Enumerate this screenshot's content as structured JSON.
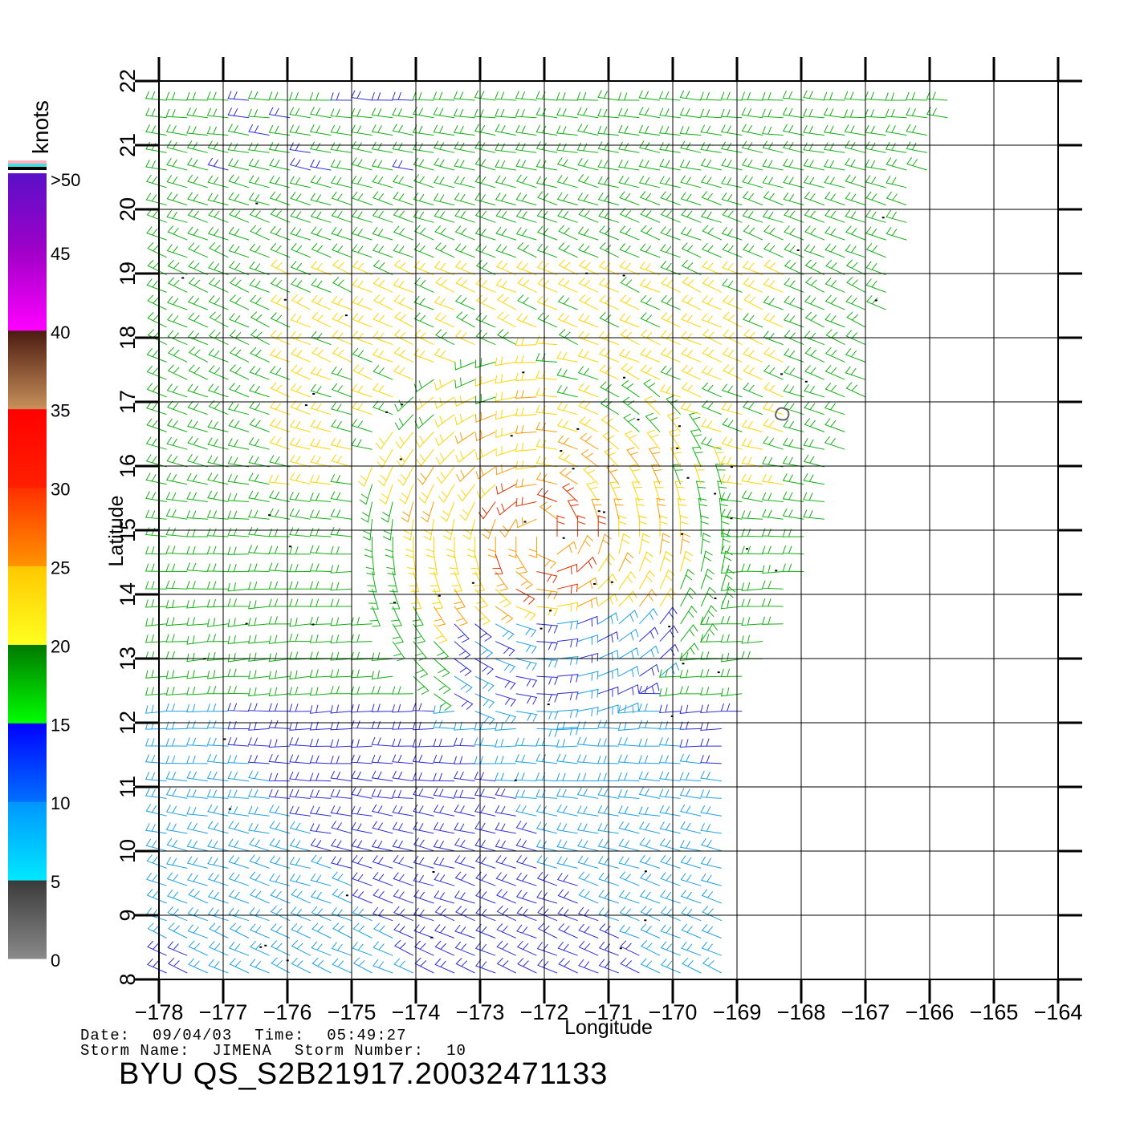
{
  "chart_data": {
    "type": "scatter",
    "subtype": "wind-barb-map",
    "xlabel": "Longitude",
    "ylabel": "Latitude",
    "xlim": [
      -178,
      -164
    ],
    "ylim": [
      8,
      22
    ],
    "x_ticks": [
      -178,
      -177,
      -176,
      -175,
      -174,
      -173,
      -172,
      -171,
      -170,
      -169,
      -168,
      -167,
      -166,
      -165,
      -164
    ],
    "y_ticks": [
      8,
      9,
      10,
      11,
      12,
      13,
      14,
      15,
      16,
      17,
      18,
      19,
      20,
      21,
      22
    ],
    "grid": true,
    "colorbar": {
      "title": "knots",
      "placement": "left",
      "tick_labels": [
        "0",
        "5",
        "10",
        "15",
        "20",
        "25",
        "30",
        "35",
        "40",
        "45",
        ">50"
      ],
      "bands": [
        {
          "from": 0,
          "to": 5,
          "top": "#3a3a3a",
          "bottom": "#8a8a8a"
        },
        {
          "from": 5,
          "to": 10,
          "top": "#0096ff",
          "bottom": "#00e8ff"
        },
        {
          "from": 10,
          "to": 15,
          "top": "#0000ff",
          "bottom": "#0070ff"
        },
        {
          "from": 15,
          "to": 20,
          "top": "#007800",
          "bottom": "#00ff00"
        },
        {
          "from": 20,
          "to": 25,
          "top": "#ffc800",
          "bottom": "#ffff20"
        },
        {
          "from": 25,
          "to": 30,
          "top": "#ff3000",
          "bottom": "#ff9400"
        },
        {
          "from": 30,
          "to": 35,
          "top": "#ff0000",
          "bottom": "#ff2000"
        },
        {
          "from": 35,
          "to": 40,
          "top": "#4a1a10",
          "bottom": "#c8905a"
        },
        {
          "from": 40,
          "to": 45,
          "top": "#a000c8",
          "bottom": "#ff00ff"
        },
        {
          "from": 45,
          "to": 50,
          "top": "#5a10c8",
          "bottom": "#a000c8"
        }
      ],
      "top_stripes": [
        "#ffb0c0",
        "#40e0e0",
        "#000000"
      ]
    },
    "speed_colors": [
      "#2d2dd8",
      "#1ea0e6",
      "#12b012",
      "#ffd400",
      "#ff9a00",
      "#e03000",
      "#d000d0"
    ],
    "swath": {
      "polygon": [
        [
          -178,
          8
        ],
        [
          -169,
          8
        ],
        [
          -169,
          12
        ],
        [
          -168,
          14
        ],
        [
          -167,
          17
        ],
        [
          -166.5,
          19
        ],
        [
          -165.5,
          22
        ],
        [
          -178,
          22
        ]
      ],
      "rain_flag_color": "#000000"
    },
    "storm_center": {
      "lon": -172,
      "lat": 14.9
    }
  },
  "footer": {
    "date_label": "Date:",
    "date_value": "09/04/03",
    "time_label": "Time:",
    "time_value": "05:49:27",
    "storm_name_label": "Storm  Name:",
    "storm_name_value": "JIMENA",
    "storm_number_label": "Storm  Number:",
    "storm_number_value": "10",
    "product_id": "BYU  QS_S2B21917.20032471133"
  }
}
